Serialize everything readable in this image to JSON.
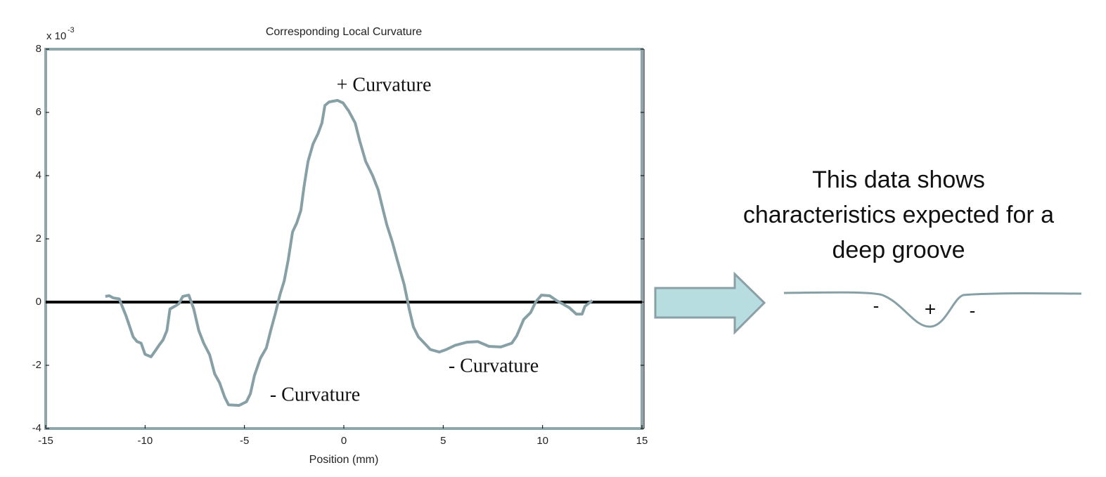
{
  "chart_data": {
    "type": "line",
    "title": "Corresponding Local Curvature",
    "xlabel": "Position (mm)",
    "y_multiplier": {
      "base": "x 10",
      "exponent": "-3"
    },
    "x": [
      -12.0,
      -11.8,
      -11.6,
      -11.3,
      -10.95,
      -10.6,
      -10.4,
      -10.2,
      -10.0,
      -9.7,
      -9.5,
      -9.3,
      -9.1,
      -8.9,
      -8.75,
      -8.5,
      -8.3,
      -8.1,
      -7.8,
      -7.55,
      -7.3,
      -7.05,
      -6.75,
      -6.5,
      -6.25,
      -6.0,
      -5.8,
      -5.27,
      -4.9,
      -4.7,
      -4.5,
      -4.2,
      -3.9,
      -3.68,
      -3.43,
      -3.22,
      -3.0,
      -2.8,
      -2.58,
      -2.37,
      -2.16,
      -2.0,
      -1.8,
      -1.55,
      -1.3,
      -1.1,
      -0.95,
      -0.74,
      -0.32,
      -0.04,
      0.25,
      0.57,
      0.8,
      1.1,
      1.45,
      1.73,
      1.98,
      2.16,
      2.44,
      2.69,
      3.04,
      3.29,
      3.5,
      3.75,
      4.1,
      4.35,
      4.8,
      5.16,
      5.6,
      6.2,
      6.75,
      7.3,
      7.9,
      8.45,
      8.7,
      9.05,
      9.4,
      9.65,
      9.94,
      10.36,
      10.7,
      11.0,
      11.35,
      11.7,
      11.99,
      12.13,
      12.5
    ],
    "values": [
      0.18,
      0.2,
      0.13,
      0.1,
      -0.45,
      -1.1,
      -1.25,
      -1.3,
      -1.65,
      -1.73,
      -1.55,
      -1.37,
      -1.2,
      -0.9,
      -0.22,
      -0.13,
      -0.05,
      0.18,
      0.22,
      -0.22,
      -0.9,
      -1.3,
      -1.67,
      -2.27,
      -2.55,
      -3.0,
      -3.25,
      -3.27,
      -3.15,
      -2.9,
      -2.33,
      -1.78,
      -1.45,
      -0.9,
      -0.33,
      0.22,
      0.67,
      1.33,
      2.22,
      2.5,
      2.9,
      3.67,
      4.45,
      5.0,
      5.33,
      5.67,
      6.22,
      6.33,
      6.38,
      6.3,
      6.04,
      5.67,
      5.1,
      4.45,
      4.0,
      3.55,
      2.9,
      2.45,
      1.9,
      1.33,
      0.55,
      -0.22,
      -0.78,
      -1.1,
      -1.33,
      -1.5,
      -1.58,
      -1.5,
      -1.37,
      -1.27,
      -1.25,
      -1.4,
      -1.42,
      -1.3,
      -1.07,
      -0.55,
      -0.33,
      0,
      0.22,
      0.2,
      0.05,
      -0.05,
      -0.18,
      -0.38,
      -0.38,
      -0.13,
      0.05
    ],
    "color": "#86a0a6",
    "reference_line": {
      "value": 0,
      "color": "#000000"
    },
    "xlim": [
      -15,
      15
    ],
    "xticks": [
      -15,
      -10,
      -5,
      0,
      5,
      10,
      15
    ],
    "ylim": [
      -4,
      8
    ],
    "yticks": [
      -4,
      -2,
      0,
      2,
      4,
      6,
      8
    ],
    "annotations": [
      "+ Curvature",
      "- Curvature",
      "- Curvature"
    ]
  },
  "side_note": {
    "lines": [
      "This data shows",
      "characteristics expected for a",
      "deep groove"
    ],
    "groove_labels": [
      "-",
      "+",
      "-"
    ]
  }
}
